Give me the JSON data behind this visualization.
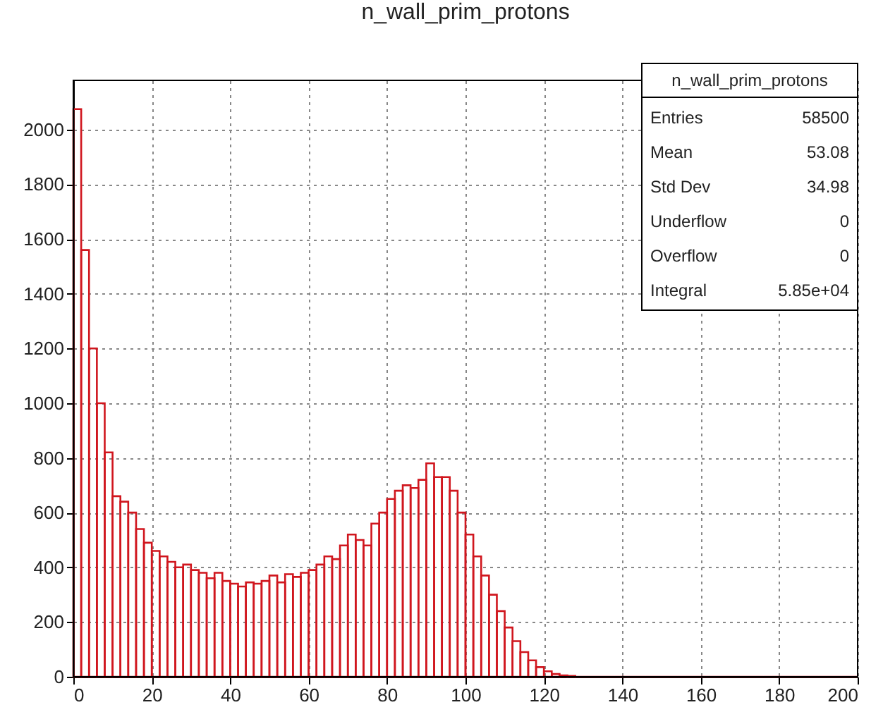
{
  "chart_data": {
    "type": "histogram",
    "title": "n_wall_prim_protons",
    "bins": [
      0,
      2,
      4,
      6,
      8,
      10,
      12,
      14,
      16,
      18,
      20,
      22,
      24,
      26,
      28,
      30,
      32,
      34,
      36,
      38,
      40,
      42,
      44,
      46,
      48,
      50,
      52,
      54,
      56,
      58,
      60,
      62,
      64,
      66,
      68,
      70,
      72,
      74,
      76,
      78,
      80,
      82,
      84,
      86,
      88,
      90,
      92,
      94,
      96,
      98,
      100,
      102,
      104,
      106,
      108,
      110,
      112,
      114,
      116,
      118,
      120,
      122,
      124,
      126,
      128,
      130,
      132,
      134,
      136,
      138,
      140,
      142,
      144,
      146,
      148,
      150,
      152,
      154,
      156,
      158,
      160,
      162,
      164,
      166,
      168,
      170,
      172,
      174,
      176,
      178,
      180,
      182,
      184,
      186,
      188,
      190,
      192,
      194,
      196,
      198,
      200
    ],
    "values": [
      2075,
      1560,
      1200,
      1000,
      820,
      660,
      640,
      600,
      540,
      490,
      460,
      440,
      420,
      400,
      410,
      390,
      380,
      360,
      380,
      350,
      340,
      330,
      345,
      340,
      350,
      370,
      345,
      375,
      365,
      380,
      390,
      410,
      440,
      430,
      480,
      520,
      500,
      480,
      560,
      600,
      650,
      680,
      700,
      690,
      720,
      780,
      730,
      730,
      680,
      600,
      520,
      440,
      370,
      300,
      240,
      180,
      130,
      90,
      60,
      35,
      20,
      10,
      5,
      3,
      0,
      0,
      0,
      0,
      0,
      0,
      0,
      0,
      0,
      0,
      0,
      0,
      0,
      0,
      0,
      0,
      0,
      0,
      0,
      0,
      0,
      0,
      0,
      0,
      0,
      0,
      0,
      0,
      0,
      0,
      0,
      0,
      0,
      0,
      0,
      0
    ],
    "color": "#d0161e",
    "xlim": [
      0,
      200
    ],
    "xticks": [
      0,
      20,
      40,
      60,
      80,
      100,
      120,
      140,
      160,
      180,
      200
    ],
    "ylim": [
      0,
      2180
    ],
    "yticks": [
      0,
      200,
      400,
      600,
      800,
      1000,
      1200,
      1400,
      1600,
      1800,
      2000
    ],
    "grid": true,
    "annotations": [
      "n_wall_prim_protons",
      "Entries",
      "58500",
      "Mean",
      "53.08",
      "Std Dev",
      "34.98",
      "Underflow",
      "0",
      "Overflow",
      "0",
      "Integral",
      "5.85e+04"
    ]
  }
}
